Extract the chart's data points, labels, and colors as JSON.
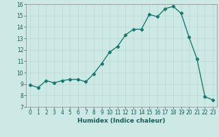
{
  "x": [
    0,
    1,
    2,
    3,
    4,
    5,
    6,
    7,
    8,
    9,
    10,
    11,
    12,
    13,
    14,
    15,
    16,
    17,
    18,
    19,
    20,
    21,
    22,
    23
  ],
  "y": [
    8.9,
    8.7,
    9.3,
    9.1,
    9.3,
    9.4,
    9.4,
    9.2,
    9.9,
    10.8,
    11.8,
    12.3,
    13.3,
    13.8,
    13.8,
    15.1,
    14.9,
    15.6,
    15.8,
    15.2,
    13.1,
    11.2,
    7.9,
    7.6
  ],
  "line_color": "#1a7a6e",
  "marker": "D",
  "markersize": 2.2,
  "linewidth": 1.0,
  "xlabel": "Humidex (Indice chaleur)",
  "xlim": [
    -0.5,
    23.5
  ],
  "ylim": [
    7,
    16
  ],
  "yticks": [
    7,
    8,
    9,
    10,
    11,
    12,
    13,
    14,
    15,
    16
  ],
  "xticks": [
    0,
    1,
    2,
    3,
    4,
    5,
    6,
    7,
    8,
    9,
    10,
    11,
    12,
    13,
    14,
    15,
    16,
    17,
    18,
    19,
    20,
    21,
    22,
    23
  ],
  "bg_color": "#cce9e5",
  "grid_color": "#b8d8d4",
  "tick_fontsize": 5.5,
  "xlabel_fontsize": 6.5
}
